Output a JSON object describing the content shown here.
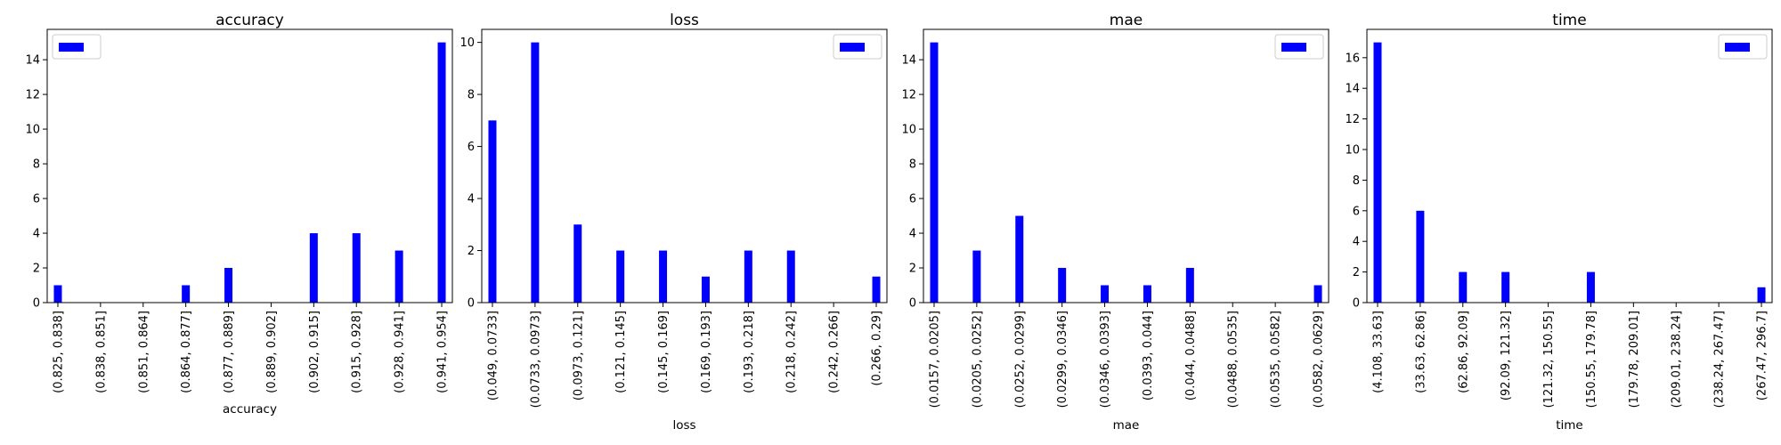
{
  "colors": {
    "bar": "#0000ff",
    "axis": "#000000",
    "background": "#ffffff"
  },
  "chart_data": [
    {
      "type": "bar",
      "title": "accuracy",
      "xlabel": "accuracy",
      "ylabel": "",
      "ylim": [
        0,
        15.75
      ],
      "yticks": [
        0,
        2,
        4,
        6,
        8,
        10,
        12,
        14
      ],
      "legend": "top-left",
      "grid": false,
      "categories": [
        "(0.825, 0.838]",
        "(0.838, 0.851]",
        "(0.851, 0.864]",
        "(0.864, 0.877]",
        "(0.877, 0.889]",
        "(0.889, 0.902]",
        "(0.902, 0.915]",
        "(0.915, 0.928]",
        "(0.928, 0.941]",
        "(0.941, 0.954]"
      ],
      "values": [
        1,
        0,
        0,
        1,
        2,
        0,
        4,
        4,
        3,
        15
      ]
    },
    {
      "type": "bar",
      "title": "loss",
      "xlabel": "loss",
      "ylabel": "",
      "ylim": [
        0,
        10.5
      ],
      "yticks": [
        0,
        2,
        4,
        6,
        8,
        10
      ],
      "legend": "top-right",
      "grid": false,
      "categories": [
        "(0.049, 0.0733]",
        "(0.0733, 0.0973]",
        "(0.0973, 0.121]",
        "(0.121, 0.145]",
        "(0.145, 0.169]",
        "(0.169, 0.193]",
        "(0.193, 0.218]",
        "(0.218, 0.242]",
        "(0.242, 0.266]",
        "(0.266, 0.29]"
      ],
      "values": [
        7,
        10,
        3,
        2,
        2,
        1,
        2,
        2,
        0,
        1
      ]
    },
    {
      "type": "bar",
      "title": "mae",
      "xlabel": "mae",
      "ylabel": "",
      "ylim": [
        0,
        15.75
      ],
      "yticks": [
        0,
        2,
        4,
        6,
        8,
        10,
        12,
        14
      ],
      "legend": "top-right",
      "grid": false,
      "categories": [
        "(0.0157, 0.0205]",
        "(0.0205, 0.0252]",
        "(0.0252, 0.0299]",
        "(0.0299, 0.0346]",
        "(0.0346, 0.0393]",
        "(0.0393, 0.044]",
        "(0.044, 0.0488]",
        "(0.0488, 0.0535]",
        "(0.0535, 0.0582]",
        "(0.0582, 0.0629]"
      ],
      "values": [
        15,
        3,
        5,
        2,
        1,
        1,
        2,
        0,
        0,
        1
      ]
    },
    {
      "type": "bar",
      "title": "time",
      "xlabel": "time",
      "ylabel": "",
      "ylim": [
        0,
        17.85
      ],
      "yticks": [
        0,
        2,
        4,
        6,
        8,
        10,
        12,
        14,
        16
      ],
      "legend": "top-right",
      "grid": false,
      "categories": [
        "(4.108, 33.63]",
        "(33.63, 62.86]",
        "(62.86, 92.09]",
        "(92.09, 121.32]",
        "(121.32, 150.55]",
        "(150.55, 179.78]",
        "(179.78, 209.01]",
        "(209.01, 238.24]",
        "(238.24, 267.47]",
        "(267.47, 296.7]"
      ],
      "values": [
        17,
        6,
        2,
        2,
        0,
        2,
        0,
        0,
        0,
        1
      ]
    }
  ]
}
